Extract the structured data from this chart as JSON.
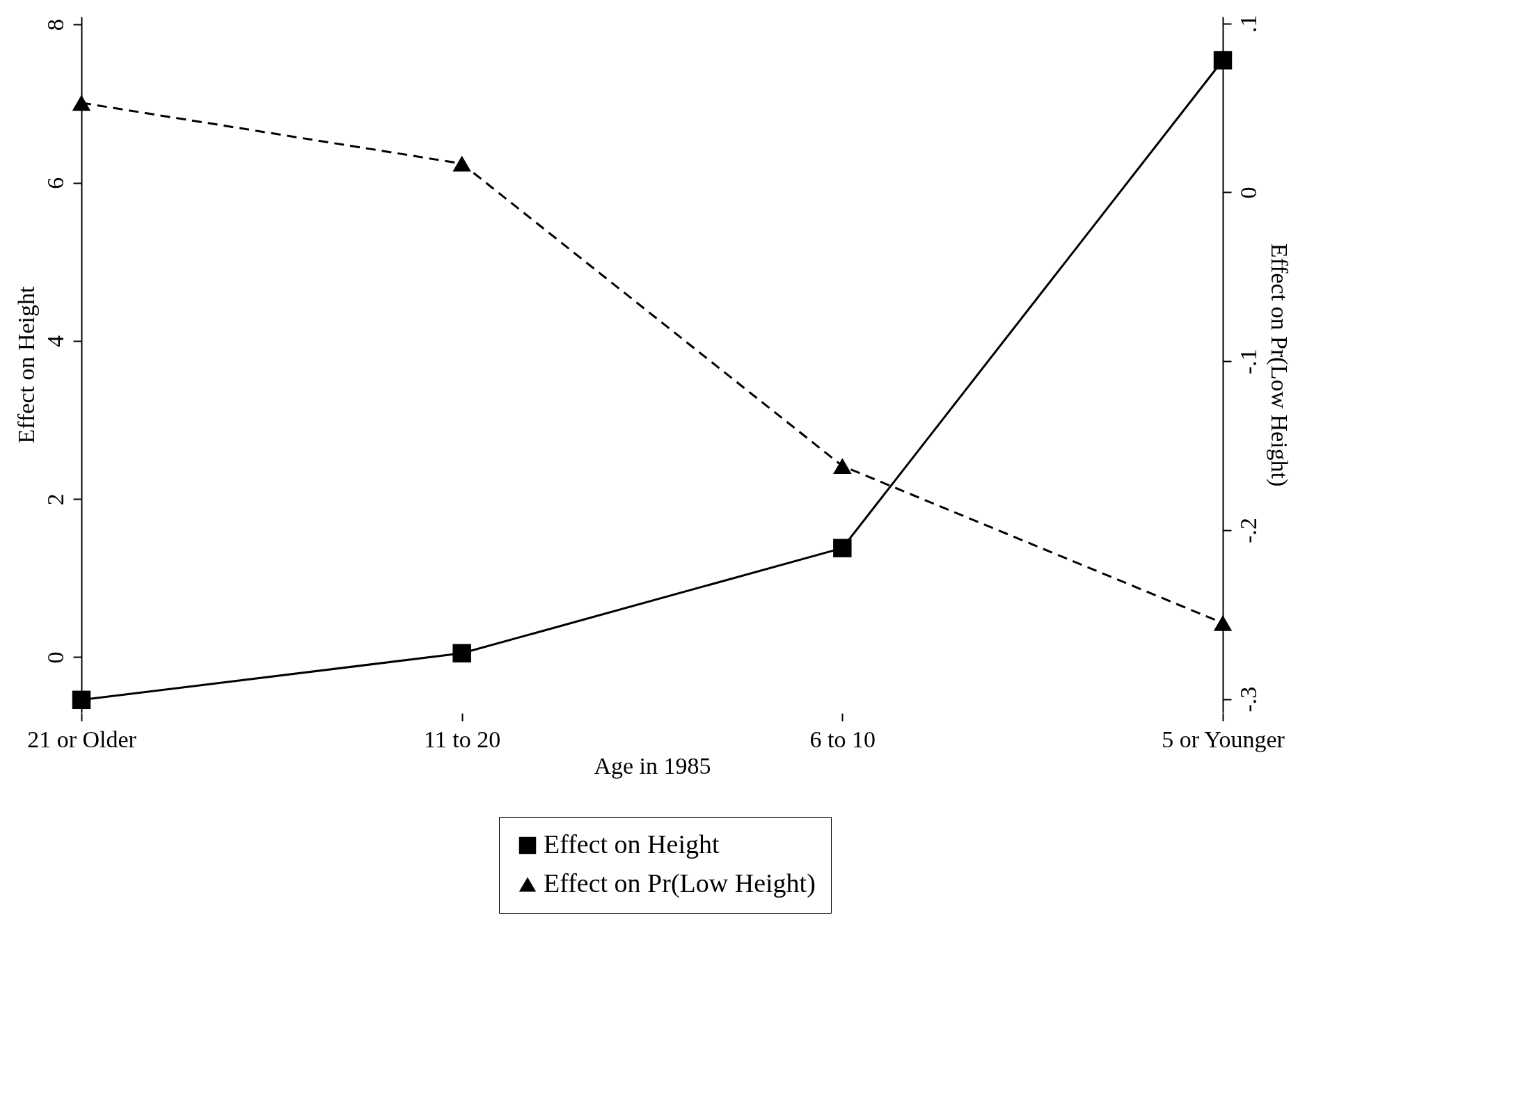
{
  "chart_data": {
    "type": "line",
    "categories": [
      "21 or Older",
      "11 to 20",
      "6 to 10",
      "5 or Younger"
    ],
    "xlabel": "Age in 1985",
    "ylabel": "Effect on Height",
    "y2label": "Effect on Pr(Low Height)",
    "series": [
      {
        "name": "Effect on Height",
        "color": "#000000",
        "values": [
          -0.54,
          0.05,
          1.38,
          7.55
        ],
        "marker": "square",
        "line_style": "solid"
      },
      {
        "name": "Effect on Pr(Low Height)",
        "color": "#000000",
        "values": [
          0.053,
          0.017,
          -0.162,
          -0.255
        ],
        "marker": "triangle",
        "line_style": "dashed",
        "axis": "y2"
      }
    ],
    "ylim": [
      -0.7,
      8.1
    ],
    "yticks": [
      0,
      2,
      4,
      6,
      8
    ],
    "y2lim": [
      -0.308,
      0.104
    ],
    "y2ticks": [
      {
        "value": -0.3,
        "label": "-.3"
      },
      {
        "value": -0.2,
        "label": "-.2"
      },
      {
        "value": -0.1,
        "label": "-.1"
      },
      {
        "value": 0,
        "label": "0"
      },
      {
        "value": 0.1,
        "label": ".1"
      }
    ],
    "legend": "bottom"
  }
}
